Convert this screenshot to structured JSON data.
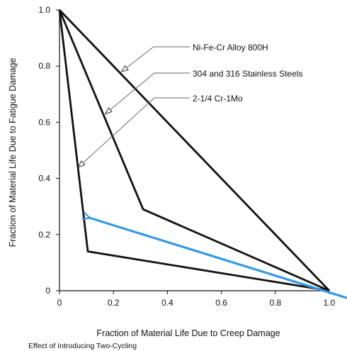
{
  "chart_data": {
    "type": "line",
    "xlabel": "Fraction of Material Life Due to Creep Damage",
    "ylabel": "Fraction of Material Life Due to Fatigue Damage",
    "xlim": [
      0,
      1.0
    ],
    "ylim": [
      0,
      1.0
    ],
    "x_ticks": [
      "0",
      "0.2",
      "0.4",
      "0.6",
      "0.8",
      "1.0"
    ],
    "y_ticks": [
      "0",
      "0.2",
      "0.4",
      "0.6",
      "0.8",
      "1.0"
    ],
    "grid": false,
    "series": [
      {
        "name": "Ni-Fe-Cr Alloy 800H",
        "x": [
          0,
          1.0
        ],
        "y": [
          1.0,
          0
        ]
      },
      {
        "name": "304 and 316 Stainless Steels",
        "x": [
          0,
          0.31,
          1.0
        ],
        "y": [
          1.0,
          0.29,
          0
        ]
      },
      {
        "name": "2-1/4 Cr-1Mo",
        "x": [
          0,
          0.105,
          1.0
        ],
        "y": [
          1.0,
          0.14,
          0
        ]
      }
    ],
    "annotations": [
      {
        "text": "Ni-Fe-Cr Alloy 800H",
        "points_to": {
          "x": 0.23,
          "y": 0.78
        }
      },
      {
        "text": "304 and 316 Stainless Steels",
        "points_to": {
          "x": 0.17,
          "y": 0.63
        }
      },
      {
        "text": "2-1/4 Cr-1Mo",
        "points_to": {
          "x": 0.07,
          "y": 0.44
        }
      }
    ],
    "arrow": {
      "from": {
        "x": 1.08,
        "y": -0.03
      },
      "to": {
        "x": 0.11,
        "y": 0.26
      },
      "color": "#3399e6"
    },
    "line_color": "#111111"
  },
  "caption": "Effect of Introducing Two-Cycling"
}
